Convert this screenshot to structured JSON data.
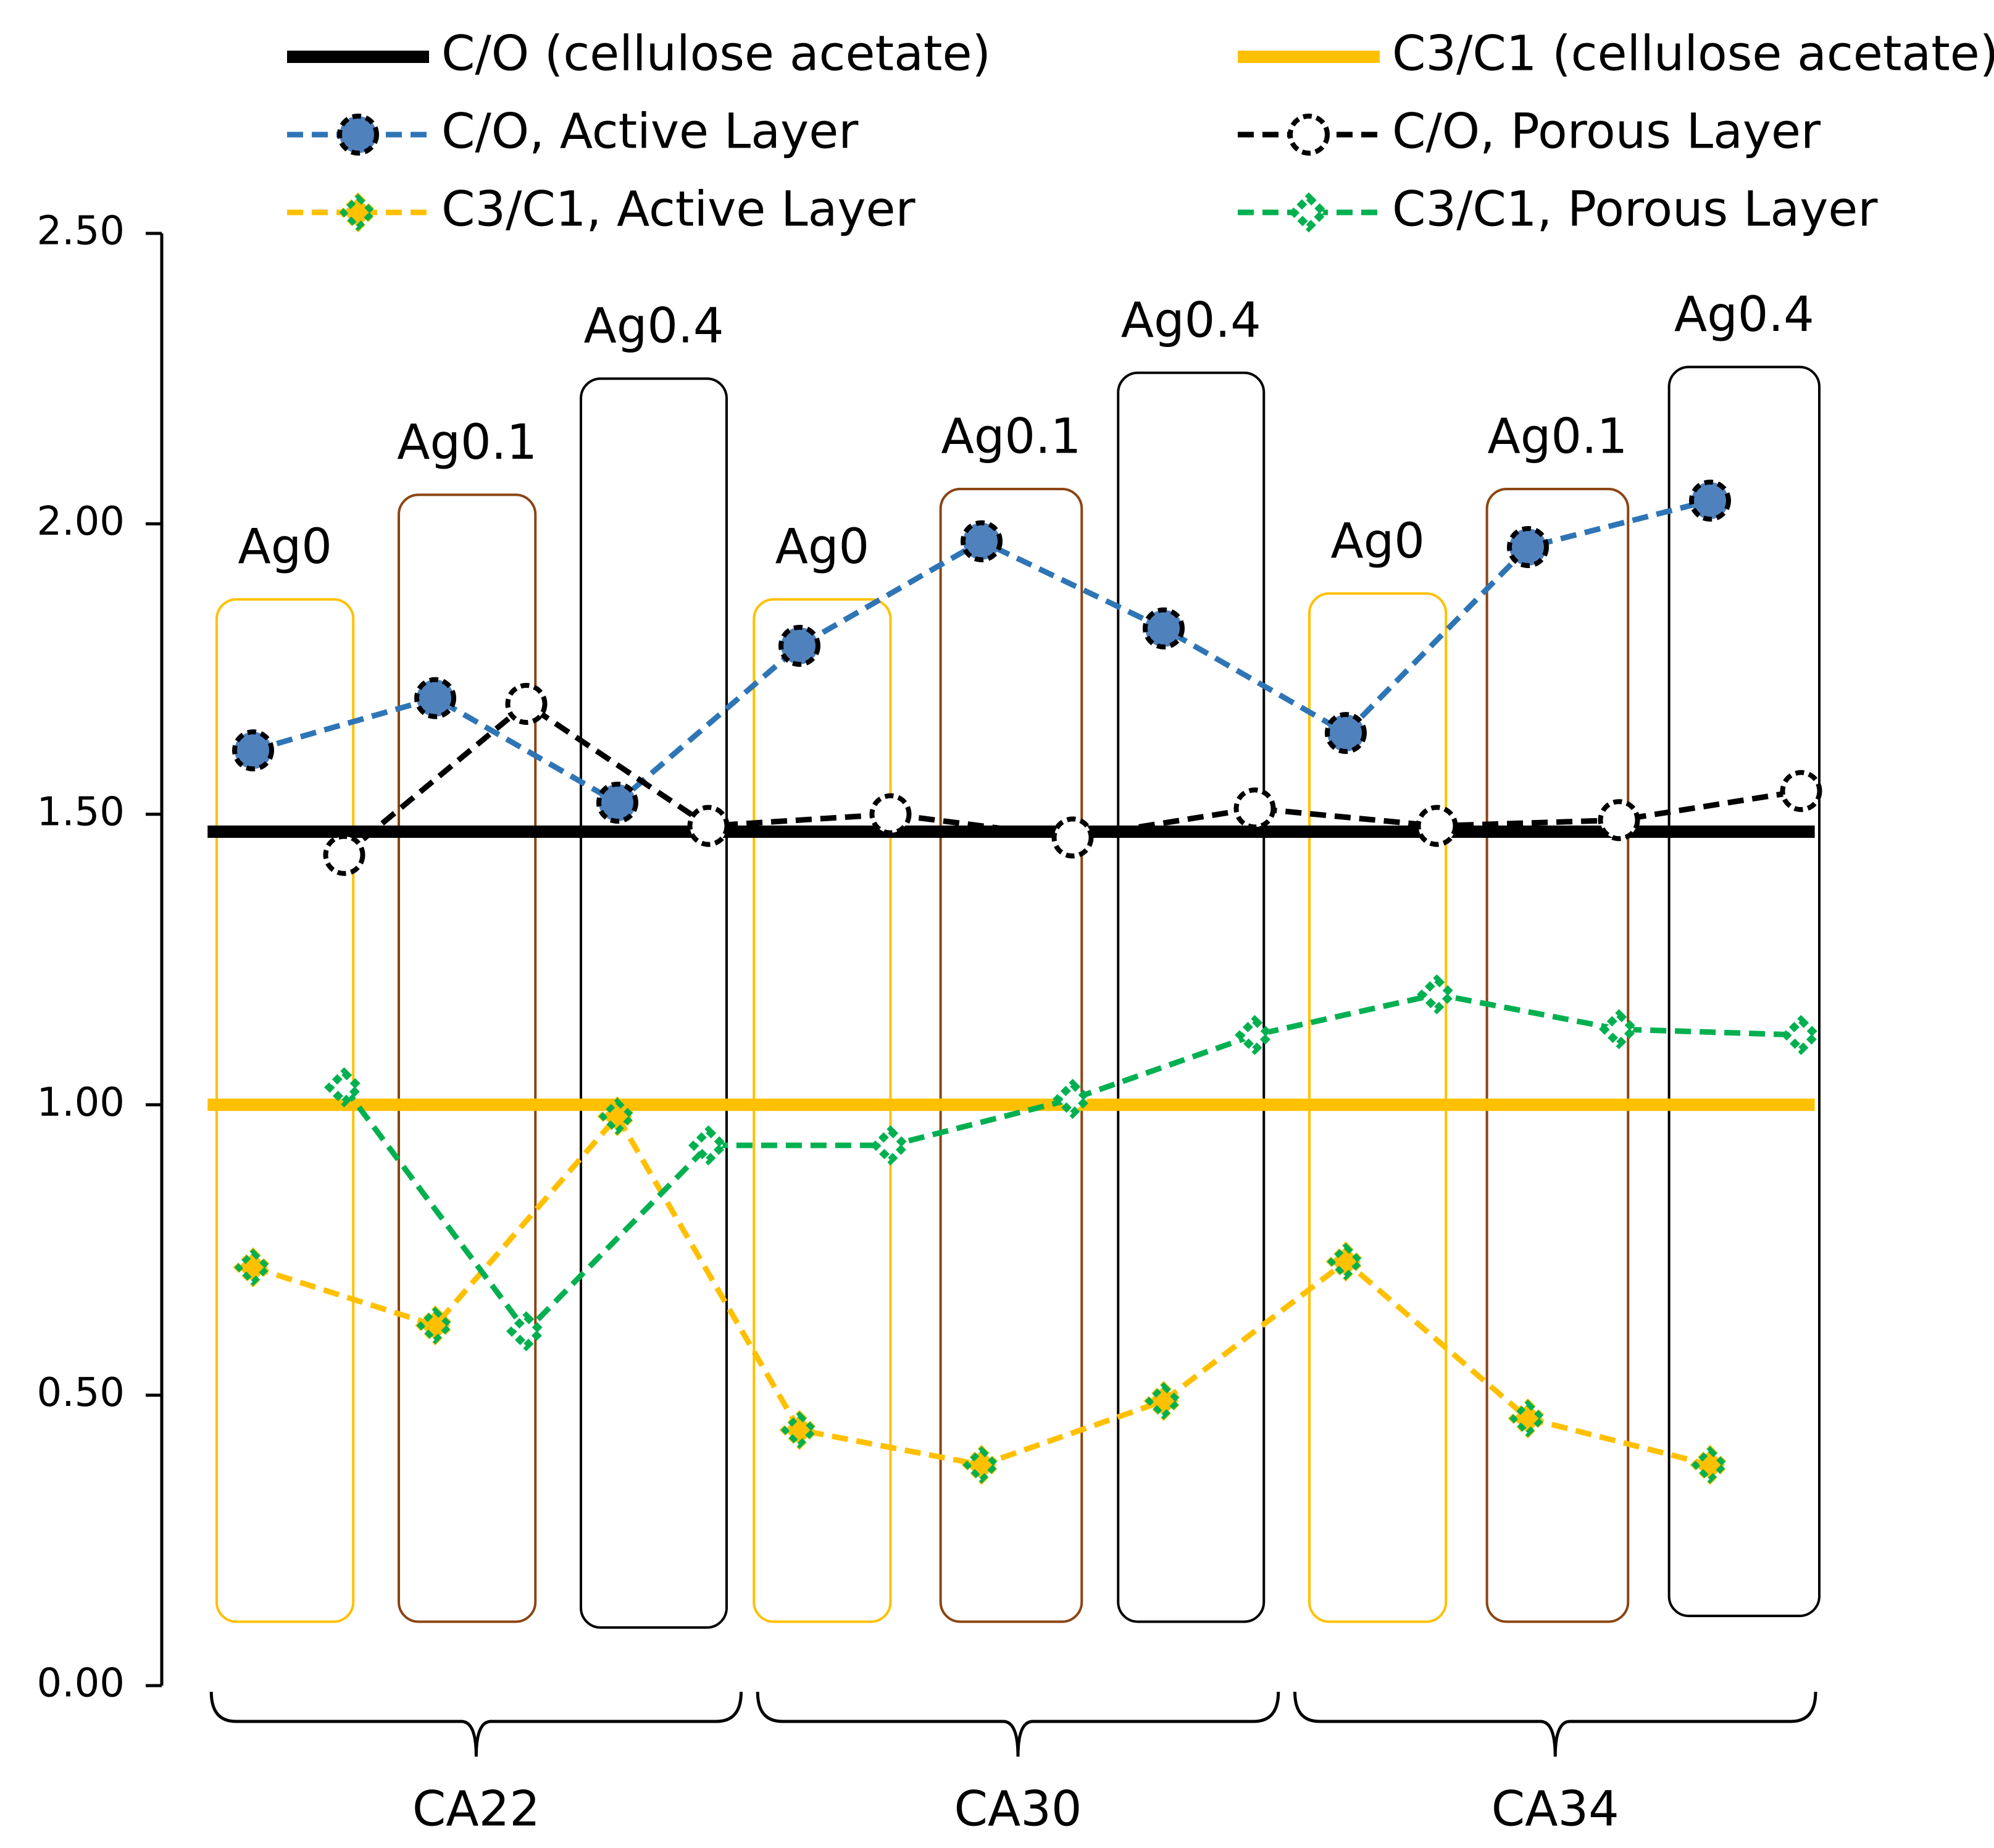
{
  "chart_data": {
    "type": "line",
    "title": "",
    "xlabel": "",
    "ylabel": "",
    "ylim": [
      0,
      2.5
    ],
    "yticks": [
      "0.00",
      "0.50",
      "1.00",
      "1.50",
      "2.00",
      "2.50"
    ],
    "x": [
      1,
      2,
      3,
      4,
      5,
      6,
      7,
      8,
      9,
      10,
      11,
      12,
      13,
      14,
      15,
      16,
      17,
      18
    ],
    "series": [
      {
        "name": "C/O, Active Layer",
        "color": "#2e75b6",
        "marker": "circle-filled",
        "marker_fill": "#4f81bd",
        "values": [
          1.61,
          null,
          1.7,
          null,
          1.52,
          null,
          1.79,
          null,
          1.97,
          null,
          1.82,
          null,
          1.64,
          null,
          1.96,
          null,
          2.04,
          null
        ]
      },
      {
        "name": "C/O, Porous Layer",
        "color": "#000000",
        "marker": "circle-open",
        "marker_fill": "#ffffff",
        "values": [
          null,
          1.43,
          null,
          1.69,
          null,
          1.48,
          null,
          1.5,
          null,
          1.46,
          null,
          1.51,
          null,
          1.48,
          null,
          1.49,
          null,
          1.54
        ]
      },
      {
        "name": "C3/C1, Active Layer",
        "color": "#ffc000",
        "marker": "diamond-filled",
        "marker_fill": "#ffc000",
        "values": [
          0.72,
          null,
          0.62,
          null,
          0.98,
          null,
          0.44,
          null,
          0.38,
          null,
          0.49,
          null,
          0.73,
          null,
          0.46,
          null,
          0.38,
          null
        ]
      },
      {
        "name": "C3/C1, Porous Layer",
        "color": "#00b050",
        "marker": "diamond-open",
        "marker_fill": "#ffffff",
        "values": [
          null,
          1.03,
          null,
          0.61,
          null,
          0.93,
          null,
          0.93,
          null,
          1.01,
          null,
          1.12,
          null,
          1.19,
          null,
          1.13,
          null,
          1.12
        ]
      }
    ],
    "reference_lines": [
      {
        "name": "C/O (cellulose acetate)",
        "value": 1.47,
        "color": "#000000"
      },
      {
        "name": "C3/C1 (cellulose acetate)",
        "value": 1.0,
        "color": "#ffc000"
      }
    ],
    "boxes": [
      {
        "label": "Ag0",
        "color": "#ffc000",
        "x_from": 0.6,
        "x_to": 2.1,
        "y_from": 0.11,
        "y_to": 1.87
      },
      {
        "label": "Ag0.1",
        "color": "#8b4513",
        "x_from": 2.6,
        "x_to": 4.1,
        "y_from": 0.11,
        "y_to": 2.05
      },
      {
        "label": "Ag0.4",
        "color": "#000000",
        "x_from": 4.6,
        "x_to": 6.2,
        "y_from": 0.1,
        "y_to": 2.25
      },
      {
        "label": "Ag0",
        "color": "#ffc000",
        "x_from": 6.5,
        "x_to": 8.0,
        "y_from": 0.11,
        "y_to": 1.87
      },
      {
        "label": "Ag0.1",
        "color": "#8b4513",
        "x_from": 8.55,
        "x_to": 10.1,
        "y_from": 0.11,
        "y_to": 2.06
      },
      {
        "label": "Ag0.4",
        "color": "#000000",
        "x_from": 10.5,
        "x_to": 12.1,
        "y_from": 0.11,
        "y_to": 2.26
      },
      {
        "label": "Ag0",
        "color": "#ffc000",
        "x_from": 12.6,
        "x_to": 14.1,
        "y_from": 0.11,
        "y_to": 1.88
      },
      {
        "label": "Ag0.1",
        "color": "#8b4513",
        "x_from": 14.55,
        "x_to": 16.1,
        "y_from": 0.11,
        "y_to": 2.06
      },
      {
        "label": "Ag0.4",
        "color": "#000000",
        "x_from": 16.55,
        "x_to": 18.2,
        "y_from": 0.12,
        "y_to": 2.27
      }
    ],
    "groups": [
      {
        "label": "CA22",
        "x_from": 0.5,
        "x_to": 6.4
      },
      {
        "label": "CA30",
        "x_from": 6.5,
        "x_to": 12.3
      },
      {
        "label": "CA34",
        "x_from": 12.4,
        "x_to": 18.2
      }
    ],
    "legend": [
      {
        "label": "C/O (cellulose acetate)",
        "kind": "ref",
        "color": "#000000"
      },
      {
        "label": "C3/C1 (cellulose acetate)",
        "kind": "ref",
        "color": "#ffc000"
      },
      {
        "label": "C/O, Active Layer",
        "kind": "series",
        "series": 0
      },
      {
        "label": "C/O, Porous Layer",
        "kind": "series",
        "series": 1
      },
      {
        "label": "C3/C1, Active Layer",
        "kind": "series",
        "series": 2
      },
      {
        "label": "C3/C1, Porous Layer",
        "kind": "series",
        "series": 3
      }
    ],
    "legend_position": "top"
  }
}
